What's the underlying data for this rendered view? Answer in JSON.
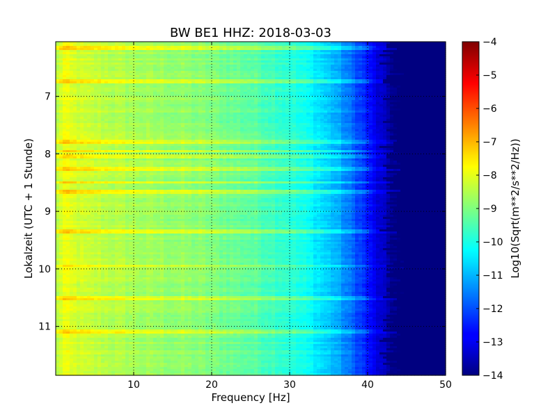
{
  "chart_data": {
    "type": "heatmap",
    "title": "BW BE1 HHZ: 2018-03-03",
    "xlabel": "Frequency [Hz]",
    "ylabel": "Lokalzeit (UTC + 1 Stunde)",
    "xlim": [
      0,
      50
    ],
    "ylim": [
      6.05,
      11.85
    ],
    "x_ticks": [
      10,
      20,
      30,
      40,
      50
    ],
    "y_ticks": [
      7,
      8,
      9,
      10,
      11
    ],
    "grid": true,
    "colorbar": {
      "label": "Log10(Sqrt(m**2/s**2/Hz))",
      "range": [
        -14,
        -4
      ],
      "ticks": [
        -4,
        -5,
        -6,
        -7,
        -8,
        -9,
        -10,
        -11,
        -12,
        -13,
        -14
      ],
      "colormap": "jet"
    },
    "spectrum_profile": {
      "frequency_hz": [
        0,
        1,
        2,
        4,
        8,
        12,
        16,
        20,
        25,
        30,
        33,
        36,
        39,
        41,
        43,
        44,
        45,
        50
      ],
      "log_amplitude": [
        -8.6,
        -7.9,
        -8.1,
        -8.3,
        -8.5,
        -8.7,
        -8.8,
        -9.0,
        -9.3,
        -9.8,
        -10.3,
        -11.0,
        -12.1,
        -13.0,
        -13.7,
        -14.0,
        -14.0,
        -14.0
      ]
    },
    "bright_bands_local_time": [
      6.15,
      6.75,
      7.8,
      7.95,
      8.05,
      8.25,
      8.5,
      8.65,
      9.35,
      9.95,
      10.5,
      11.1
    ]
  }
}
